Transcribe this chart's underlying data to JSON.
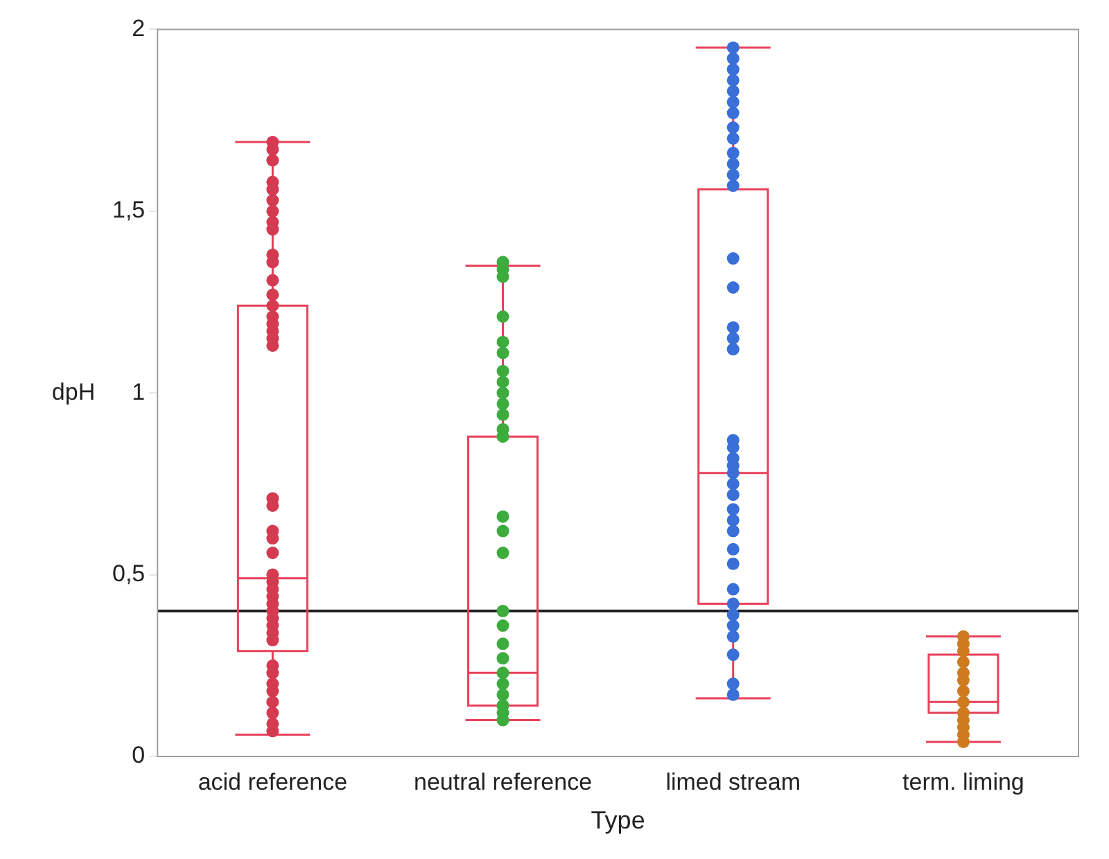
{
  "chart_data": {
    "type": "box",
    "xlabel": "Type",
    "ylabel": "dpH",
    "categories": [
      "acid reference",
      "neutral reference",
      "limed stream",
      "term. liming"
    ],
    "ylim": [
      0,
      2
    ],
    "yticks": [
      0,
      {
        "value": 0.5,
        "label": "0,5"
      },
      1,
      {
        "value": 1.5,
        "label": "1,5"
      },
      2
    ],
    "grid": false,
    "legend": false,
    "marker": "circle",
    "ref_lines": [
      {
        "axis": "y",
        "value": 0.4,
        "color": "#202020"
      }
    ],
    "series": [
      {
        "type": "box",
        "color": "#e8405a",
        "boxes": [
          {
            "low": 0.06,
            "q1": 0.29,
            "median": 0.49,
            "q3": 1.24,
            "high": 1.69
          },
          {
            "low": 0.1,
            "q1": 0.14,
            "median": 0.23,
            "q3": 0.88,
            "high": 1.35
          },
          {
            "low": 0.16,
            "q1": 0.42,
            "median": 0.78,
            "q3": 1.56,
            "high": 1.95
          },
          {
            "low": 0.04,
            "q1": 0.12,
            "median": 0.15,
            "q3": 0.28,
            "high": 0.33
          }
        ]
      },
      {
        "type": "scatter",
        "color": "#d43a50",
        "x": [
          "acid reference",
          "acid reference",
          "acid reference",
          "acid reference",
          "acid reference",
          "acid reference",
          "acid reference",
          "acid reference",
          "acid reference",
          "acid reference",
          "acid reference",
          "acid reference",
          "acid reference",
          "acid reference",
          "acid reference",
          "acid reference",
          "acid reference",
          "acid reference",
          "acid reference",
          "acid reference",
          "acid reference",
          "acid reference",
          "acid reference",
          "acid reference",
          "acid reference",
          "acid reference",
          "acid reference",
          "acid reference",
          "acid reference",
          "acid reference",
          "acid reference",
          "acid reference",
          "acid reference",
          "acid reference",
          "acid reference",
          "acid reference",
          "acid reference",
          "acid reference",
          "acid reference",
          "acid reference",
          "acid reference",
          "acid reference"
        ],
        "values": [
          1.69,
          1.67,
          1.64,
          1.58,
          1.56,
          1.53,
          1.5,
          1.47,
          1.45,
          1.38,
          1.36,
          1.31,
          1.27,
          1.24,
          1.21,
          1.19,
          1.17,
          1.15,
          1.13,
          0.71,
          0.69,
          0.62,
          0.6,
          0.56,
          0.5,
          0.48,
          0.46,
          0.44,
          0.42,
          0.4,
          0.38,
          0.36,
          0.34,
          0.32,
          0.25,
          0.23,
          0.2,
          0.18,
          0.15,
          0.12,
          0.09,
          0.07
        ]
      },
      {
        "type": "scatter",
        "color": "#3cac3c",
        "x": [
          "neutral reference",
          "neutral reference",
          "neutral reference",
          "neutral reference",
          "neutral reference",
          "neutral reference",
          "neutral reference",
          "neutral reference",
          "neutral reference",
          "neutral reference",
          "neutral reference",
          "neutral reference",
          "neutral reference",
          "neutral reference",
          "neutral reference",
          "neutral reference",
          "neutral reference",
          "neutral reference",
          "neutral reference",
          "neutral reference",
          "neutral reference",
          "neutral reference",
          "neutral reference",
          "neutral reference",
          "neutral reference",
          "neutral reference"
        ],
        "values": [
          1.36,
          1.34,
          1.32,
          1.21,
          1.14,
          1.11,
          1.06,
          1.03,
          1.0,
          0.97,
          0.94,
          0.9,
          0.88,
          0.66,
          0.62,
          0.56,
          0.4,
          0.36,
          0.31,
          0.27,
          0.23,
          0.2,
          0.17,
          0.14,
          0.12,
          0.1
        ]
      },
      {
        "type": "scatter",
        "color": "#3a6fd8",
        "x": [
          "limed stream",
          "limed stream",
          "limed stream",
          "limed stream",
          "limed stream",
          "limed stream",
          "limed stream",
          "limed stream",
          "limed stream",
          "limed stream",
          "limed stream",
          "limed stream",
          "limed stream",
          "limed stream",
          "limed stream",
          "limed stream",
          "limed stream",
          "limed stream",
          "limed stream",
          "limed stream",
          "limed stream",
          "limed stream",
          "limed stream",
          "limed stream",
          "limed stream",
          "limed stream",
          "limed stream",
          "limed stream",
          "limed stream",
          "limed stream",
          "limed stream",
          "limed stream",
          "limed stream",
          "limed stream",
          "limed stream",
          "limed stream",
          "limed stream",
          "limed stream"
        ],
        "values": [
          1.95,
          1.92,
          1.89,
          1.86,
          1.83,
          1.8,
          1.77,
          1.73,
          1.7,
          1.66,
          1.63,
          1.6,
          1.57,
          1.37,
          1.29,
          1.18,
          1.15,
          1.12,
          0.87,
          0.85,
          0.82,
          0.8,
          0.78,
          0.75,
          0.72,
          0.68,
          0.65,
          0.62,
          0.57,
          0.53,
          0.46,
          0.42,
          0.39,
          0.36,
          0.33,
          0.28,
          0.2,
          0.17
        ]
      },
      {
        "type": "scatter",
        "color": "#d07a20",
        "x": [
          "term. liming",
          "term. liming",
          "term. liming",
          "term. liming",
          "term. liming",
          "term. liming",
          "term. liming",
          "term. liming",
          "term. liming",
          "term. liming",
          "term. liming",
          "term. liming",
          "term. liming"
        ],
        "values": [
          0.33,
          0.31,
          0.29,
          0.26,
          0.23,
          0.21,
          0.18,
          0.15,
          0.12,
          0.1,
          0.08,
          0.06,
          0.04
        ]
      }
    ]
  }
}
